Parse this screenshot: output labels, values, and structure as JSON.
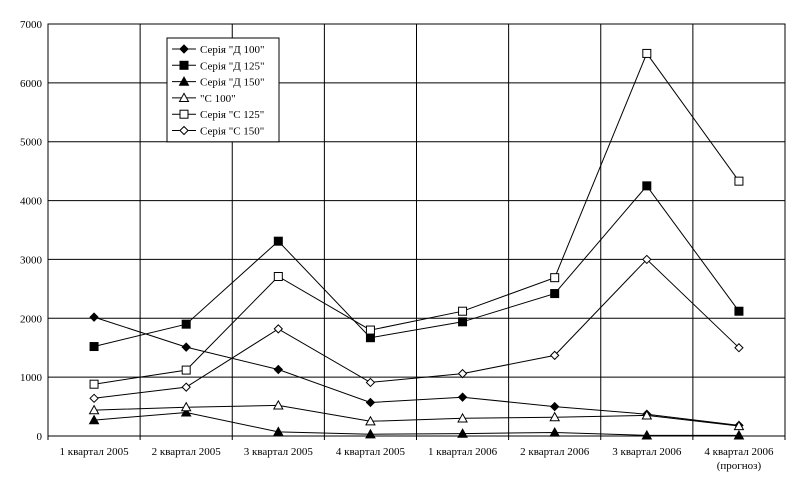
{
  "chart_data": {
    "type": "line",
    "title": "",
    "xlabel": "",
    "ylabel": "",
    "ylim": [
      0,
      7000
    ],
    "ytick_step": 1000,
    "grid": true,
    "legend_position": "top-left-inside",
    "categories": [
      [
        "1 квартал 2005"
      ],
      [
        "2 квартал 2005"
      ],
      [
        "3 квартал 2005"
      ],
      [
        "4 квартал 2005"
      ],
      [
        "1 квартал 2006"
      ],
      [
        "2 квартал 2006"
      ],
      [
        "3 квартал 2006"
      ],
      [
        "4 квартал 2006",
        "(прогноз)"
      ]
    ],
    "series": [
      {
        "name": "Серія \"Д 100\"",
        "marker": "diamond-filled",
        "values": [
          2020,
          1510,
          1130,
          570,
          660,
          500,
          370,
          180
        ]
      },
      {
        "name": "Серія \"Д 125\"",
        "marker": "square-filled",
        "values": [
          1520,
          1900,
          3310,
          1670,
          1940,
          2420,
          4250,
          2120
        ]
      },
      {
        "name": "Серія \"Д 150\"",
        "marker": "triangle-filled",
        "values": [
          270,
          400,
          70,
          30,
          40,
          60,
          10,
          10
        ]
      },
      {
        "name": "\"С 100\"",
        "marker": "triangle-open",
        "values": [
          440,
          490,
          520,
          250,
          300,
          320,
          350,
          170
        ]
      },
      {
        "name": "Серія \"С 125\"",
        "marker": "square-open",
        "values": [
          880,
          1120,
          2710,
          1800,
          2120,
          2690,
          6500,
          4330
        ]
      },
      {
        "name": "Серія \"С 150\"",
        "marker": "diamond-open",
        "values": [
          640,
          830,
          1820,
          910,
          1060,
          1370,
          3000,
          1500
        ]
      }
    ]
  }
}
